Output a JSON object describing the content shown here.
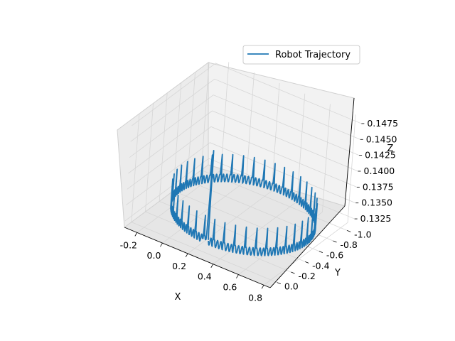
{
  "chart_data": {
    "type": "line",
    "projection": "3d",
    "title": "",
    "xlabel": "X",
    "ylabel": "Y",
    "zlabel": "Z",
    "xlim": [
      -0.3,
      0.85
    ],
    "ylim": [
      -1.1,
      0.1
    ],
    "zlim": [
      0.1315,
      0.1485
    ],
    "x_ticks": [
      "-0.2",
      "0.0",
      "0.2",
      "0.4",
      "0.6",
      "0.8"
    ],
    "y_ticks": [
      "-1.0",
      "-0.8",
      "-0.6",
      "-0.4",
      "-0.2",
      "0.0"
    ],
    "z_ticks": [
      "0.1325",
      "0.1350",
      "0.1375",
      "0.1400",
      "0.1425",
      "0.1450",
      "0.1475"
    ],
    "grid": true,
    "legend_position": "top-right",
    "series": [
      {
        "name": "Robot Trajectory",
        "color": "#1f77b4",
        "shape": "circular path, center (0.3, -0.5), radius 0.5, z oscillating 0.1325–0.1375 with ~42 sharp spikes; start transient near (0.3, 0.0) peaking at 0.1478",
        "center": [
          0.3,
          -0.5
        ],
        "radius": 0.5,
        "z_baseline": 0.1335,
        "z_spike": 0.1372,
        "spike_count": 42,
        "start_peak_z": 0.1478
      }
    ]
  }
}
